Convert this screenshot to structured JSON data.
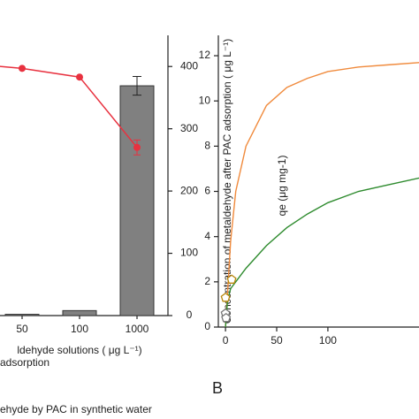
{
  "chart_data": [
    {
      "type": "bar",
      "x_label": "ldehyde solutions ( μg L⁻¹)",
      "y2_label": "Concentration of metaldehyde after PAC adsorption ( μg L⁻¹)",
      "categories": [
        null,
        "50",
        "100",
        "1000"
      ],
      "y2lim": [
        0,
        450
      ],
      "y2ticks": [
        0,
        100,
        200,
        300,
        400
      ],
      "series": [
        {
          "name": "adsorption",
          "type": "bar",
          "axis": "y2",
          "color": "#808080",
          "values": [
            null,
            2,
            8,
            369
          ],
          "errors": [
            null,
            null,
            null,
            15
          ]
        },
        {
          "name": "ehyde by PAC in synthetic water",
          "type": "line",
          "axis": "y2",
          "color": "#e8313f",
          "values": [
            405,
            397,
            383,
            270
          ],
          "errors": [
            null,
            null,
            null,
            12
          ]
        }
      ],
      "panel_label": "B"
    },
    {
      "type": "line",
      "y_label": "qe (μg mg-1)",
      "xlim": [
        -7,
        189
      ],
      "xticks": [
        0,
        50,
        100
      ],
      "ylim": [
        0,
        12.9
      ],
      "yticks": [
        0,
        2,
        4,
        6,
        8,
        10,
        12
      ],
      "series": [
        {
          "type": "line",
          "color": "#f08a3c",
          "x": [
            0,
            2,
            5,
            10,
            20,
            40,
            60,
            80,
            100,
            130,
            160,
            190
          ],
          "values": [
            0,
            1.5,
            3.8,
            6.0,
            8.0,
            9.8,
            10.6,
            11.0,
            11.3,
            11.5,
            11.6,
            11.7
          ]
        },
        {
          "type": "line",
          "color": "#2e8b2e",
          "x": [
            0,
            2,
            5,
            10,
            20,
            40,
            60,
            80,
            100,
            130,
            160,
            190
          ],
          "values": [
            0,
            1.2,
            1.7,
            2.0,
            2.6,
            3.6,
            4.4,
            5.0,
            5.5,
            6.0,
            6.3,
            6.6
          ]
        },
        {
          "type": "scatter",
          "color": "#b8860b",
          "x": [
            0,
            6
          ],
          "values": [
            1.3,
            2.1
          ]
        },
        {
          "type": "scatter",
          "color": "#777777",
          "x": [
            0,
            0.5
          ],
          "values": [
            0.6,
            0.4
          ]
        }
      ]
    }
  ]
}
